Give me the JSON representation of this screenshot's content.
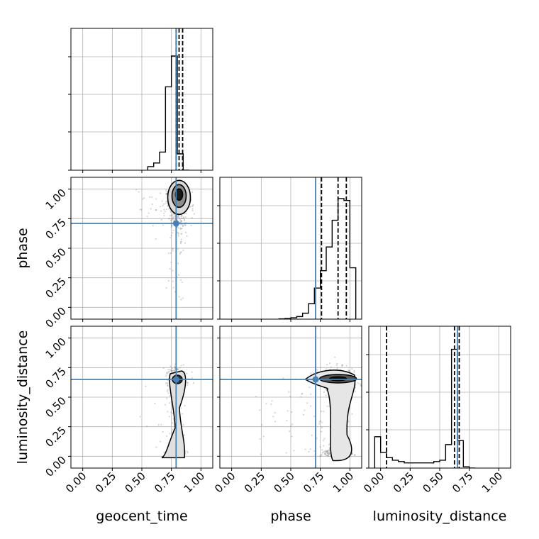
{
  "chart_data": {
    "type": "corner",
    "parameters": [
      "geocent_time",
      "phase",
      "luminosity_distance"
    ],
    "axis_labels": [
      "geocent_time",
      "phase",
      "luminosity_distance"
    ],
    "tick_labels": [
      "0.00",
      "0.25",
      "0.50",
      "0.75",
      "1.00"
    ],
    "ticks": [
      0,
      0.25,
      0.5,
      0.75,
      1.0
    ],
    "range": [
      -0.1,
      1.1
    ],
    "grid": true,
    "colors": {
      "truth": "#4682b4",
      "hist": "#000000",
      "grid": "#b0b0b0",
      "scatter": "#888888"
    },
    "truths": {
      "geocent_time": 0.79,
      "phase": 0.71,
      "luminosity_distance": 0.65
    },
    "quantiles": {
      "geocent_time": [
        0.79,
        0.815,
        0.845
      ],
      "phase": [
        0.76,
        0.9,
        0.97
      ],
      "luminosity_distance": [
        0.05,
        0.625,
        0.665
      ]
    },
    "histograms": {
      "geocent_time": {
        "bin_edges": [
          0.0,
          0.05,
          0.1,
          0.15,
          0.2,
          0.25,
          0.3,
          0.35,
          0.4,
          0.45,
          0.5,
          0.55,
          0.6,
          0.65,
          0.7,
          0.75,
          0.8,
          0.85,
          0.9,
          0.95,
          1.0
        ],
        "counts": [
          0,
          0,
          0,
          0,
          0,
          0,
          0,
          0,
          0,
          0,
          0,
          0.2,
          0.4,
          1.0,
          4.6,
          6.3,
          0.9,
          0,
          0,
          0,
          0
        ],
        "bar_edges": [
          0.55,
          0.6,
          0.65,
          0.7,
          0.75,
          0.8,
          0.85,
          0.9
        ],
        "bar_counts": [
          0.2,
          0.4,
          1.0,
          4.6,
          6.3,
          0.9,
          0.0
        ],
        "ymax": 7.2
      },
      "phase": {
        "bar_edges": [
          0.4,
          0.45,
          0.5,
          0.55,
          0.6,
          0.65,
          0.7,
          0.75,
          0.8,
          0.85,
          0.9,
          0.95,
          1.0,
          1.05
        ],
        "bar_counts": [
          0.15,
          0.35,
          0.7,
          1.3,
          3.0,
          7.8,
          15.7,
          24.5,
          36.5,
          50.0,
          61.0,
          60.0,
          26.0
        ],
        "ymax": 66
      },
      "luminosity_distance": {
        "bar_edges": [
          -0.05,
          0.0,
          0.05,
          0.1,
          0.15,
          0.2,
          0.25,
          0.3,
          0.35,
          0.4,
          0.45,
          0.5,
          0.55,
          0.6,
          0.65,
          0.7,
          0.75,
          0.8
        ],
        "bar_counts": [
          0.24,
          0.12,
          0.08,
          0.06,
          0.05,
          0.04,
          0.04,
          0.04,
          0.04,
          0.04,
          0.05,
          0.06,
          0.18,
          0.91,
          0.21,
          0.01,
          0.0
        ],
        "ymax": 1.0
      }
    },
    "scatter_panels": [
      {
        "x": "geocent_time",
        "y": "phase",
        "x_center": 0.8,
        "x_sd": 0.045,
        "y_peak": 0.95
      },
      {
        "x": "geocent_time",
        "y": "luminosity_distance",
        "x_center": 0.8,
        "x_sd": 0.04,
        "y_peak": 0.65
      },
      {
        "x": "phase",
        "y": "luminosity_distance",
        "x_center": 0.88,
        "x_sd": 0.09,
        "y_peak": 0.65
      }
    ]
  }
}
